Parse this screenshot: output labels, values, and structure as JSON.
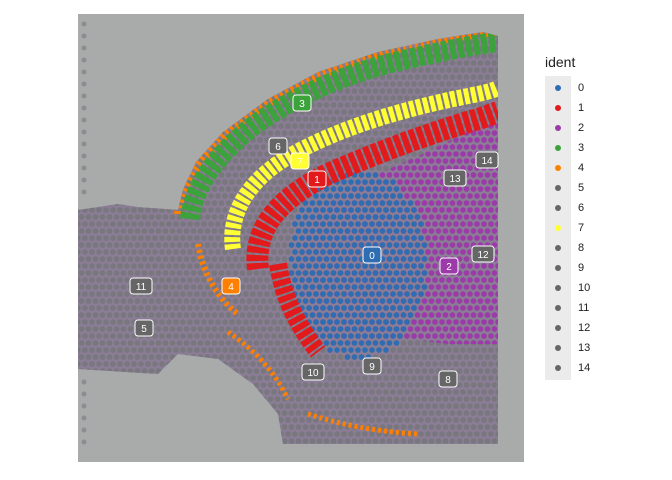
{
  "legend": {
    "title": "ident",
    "items": [
      {
        "label": "0",
        "color": "#2f6db3"
      },
      {
        "label": "1",
        "color": "#e31a1c"
      },
      {
        "label": "2",
        "color": "#9c3aaa"
      },
      {
        "label": "3",
        "color": "#3ca23c"
      },
      {
        "label": "4",
        "color": "#ff7f00"
      },
      {
        "label": "5",
        "color": "#666666"
      },
      {
        "label": "6",
        "color": "#666666"
      },
      {
        "label": "7",
        "color": "#ffff33"
      },
      {
        "label": "8",
        "color": "#666666"
      },
      {
        "label": "9",
        "color": "#666666"
      },
      {
        "label": "10",
        "color": "#666666"
      },
      {
        "label": "11",
        "color": "#666666"
      },
      {
        "label": "12",
        "color": "#666666"
      },
      {
        "label": "13",
        "color": "#666666"
      },
      {
        "label": "14",
        "color": "#666666"
      }
    ]
  },
  "cluster_labels": [
    {
      "label": "0",
      "color": "#2f6db3"
    },
    {
      "label": "1",
      "color": "#e31a1c"
    },
    {
      "label": "2",
      "color": "#9c3aaa"
    },
    {
      "label": "3",
      "color": "#3ca23c"
    },
    {
      "label": "4",
      "color": "#ff7f00"
    },
    {
      "label": "5",
      "color": "#666666"
    },
    {
      "label": "6",
      "color": "#666666"
    },
    {
      "label": "7",
      "color": "#ffff33"
    },
    {
      "label": "8",
      "color": "#666666"
    },
    {
      "label": "9",
      "color": "#666666"
    },
    {
      "label": "10",
      "color": "#666666"
    },
    {
      "label": "11",
      "color": "#666666"
    },
    {
      "label": "12",
      "color": "#666666"
    },
    {
      "label": "13",
      "color": "#666666"
    },
    {
      "label": "14",
      "color": "#666666"
    }
  ]
}
